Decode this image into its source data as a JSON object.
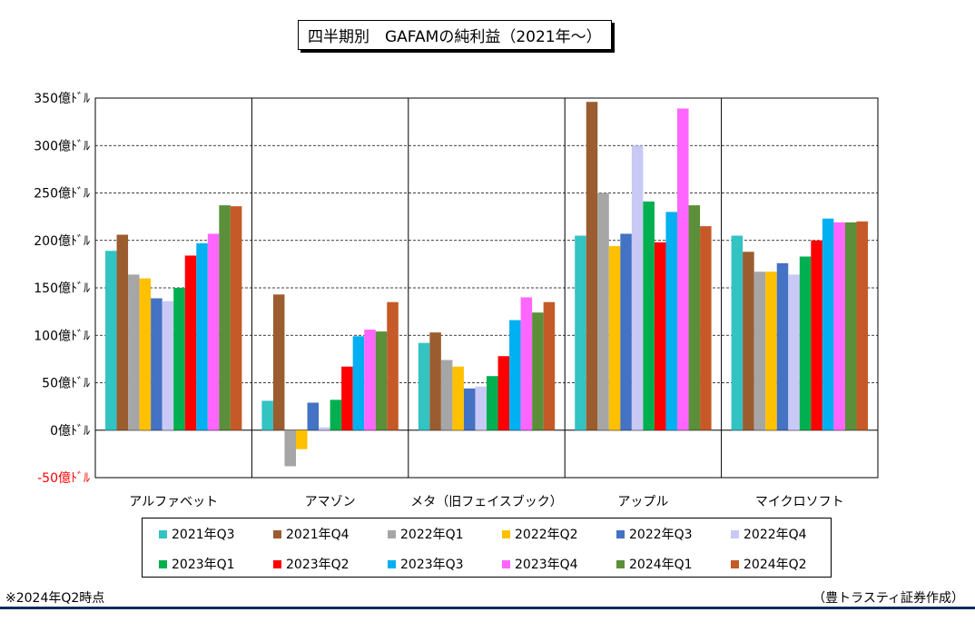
{
  "page": {
    "title": "四半期別　GAFAMの純利益（2021年～）",
    "footnote": "※2024年Q2時点",
    "credit": "（豊トラスティ証券作成）"
  },
  "chart_data": {
    "type": "bar",
    "title": "四半期別　GAFAMの純利益（2021年～）",
    "xlabel": "",
    "ylabel": "",
    "ylim": [
      -50,
      350
    ],
    "yticks": [
      350,
      300,
      250,
      200,
      150,
      100,
      50,
      0,
      -50
    ],
    "ytick_labels": [
      "350億ﾄﾞﾙ",
      "300億ﾄﾞﾙ",
      "250億ﾄﾞﾙ",
      "200億ﾄﾞﾙ",
      "150億ﾄﾞﾙ",
      "100億ﾄﾞﾙ",
      "50億ﾄﾞﾙ",
      "0億ﾄﾞﾙ",
      "-50億ﾄﾞﾙ"
    ],
    "negative_tick_color": "#ff0000",
    "grid": true,
    "legend_position": "bottom",
    "categories": [
      "アルファベット",
      "アマゾン",
      "メタ（旧フェイスブック）",
      "アップル",
      "マイクロソフト"
    ],
    "series": [
      {
        "name": "2021年Q3",
        "color": "#33c3c3",
        "values": [
          189,
          31,
          92,
          205,
          205
        ]
      },
      {
        "name": "2021年Q4",
        "color": "#9b5d30",
        "values": [
          206,
          143,
          103,
          346,
          188
        ]
      },
      {
        "name": "2022年Q1",
        "color": "#a6a6a6",
        "values": [
          164,
          -38,
          74,
          250,
          167
        ]
      },
      {
        "name": "2022年Q2",
        "color": "#ffc000",
        "values": [
          160,
          -20,
          67,
          194,
          167
        ]
      },
      {
        "name": "2022年Q3",
        "color": "#4472c4",
        "values": [
          139,
          29,
          44,
          207,
          176
        ]
      },
      {
        "name": "2022年Q4",
        "color": "#c9c9f5",
        "values": [
          136,
          3,
          46,
          300,
          164
        ]
      },
      {
        "name": "2023年Q1",
        "color": "#00b050",
        "values": [
          150,
          32,
          57,
          241,
          183
        ]
      },
      {
        "name": "2023年Q2",
        "color": "#ff0000",
        "values": [
          184,
          67,
          78,
          198,
          200
        ]
      },
      {
        "name": "2023年Q3",
        "color": "#00b0f0",
        "values": [
          197,
          99,
          116,
          230,
          223
        ]
      },
      {
        "name": "2023年Q4",
        "color": "#ff66ff",
        "values": [
          207,
          106,
          140,
          339,
          219
        ]
      },
      {
        "name": "2024年Q1",
        "color": "#5b8f3a",
        "values": [
          237,
          104,
          124,
          237,
          219
        ]
      },
      {
        "name": "2024年Q2",
        "color": "#c55a28",
        "values": [
          236,
          135,
          135,
          215,
          220
        ]
      }
    ]
  }
}
